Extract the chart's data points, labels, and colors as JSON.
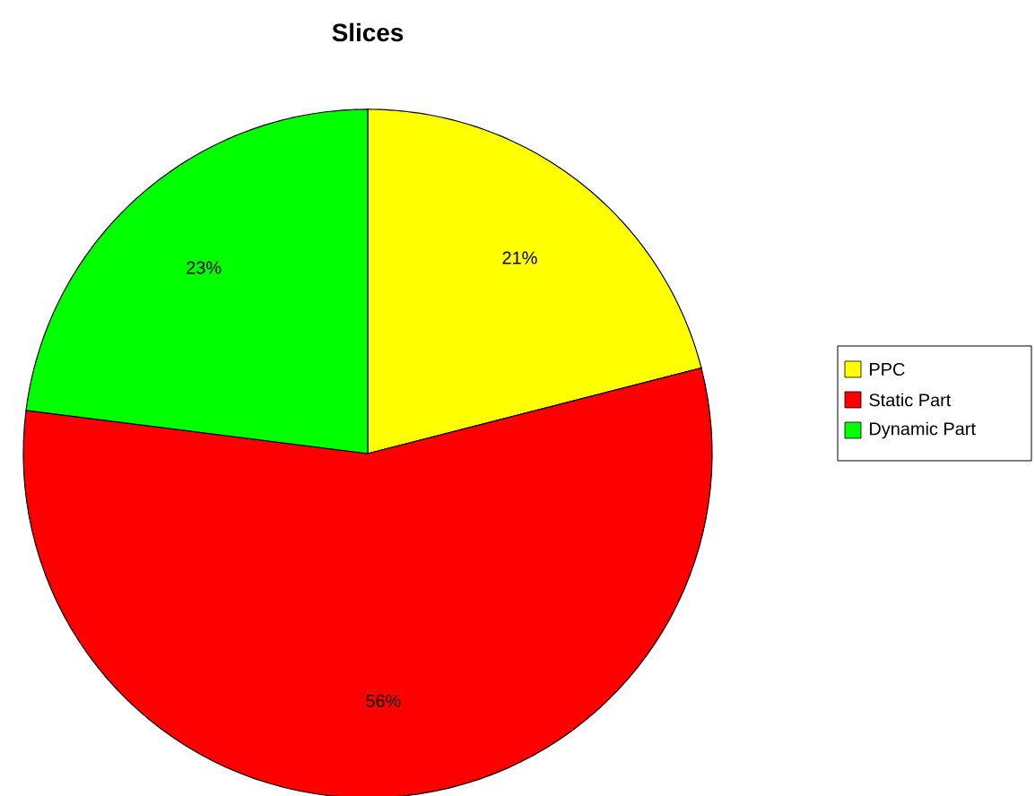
{
  "chart_data": {
    "type": "pie",
    "title": "Slices",
    "categories": [
      "PPC",
      "Static Part",
      "Dynamic Part"
    ],
    "values": [
      21,
      56,
      23
    ],
    "value_labels": [
      "21%",
      "56%",
      "23%"
    ],
    "colors": [
      "#ffff00",
      "#ff0000",
      "#00ff00"
    ],
    "legend": "right"
  }
}
